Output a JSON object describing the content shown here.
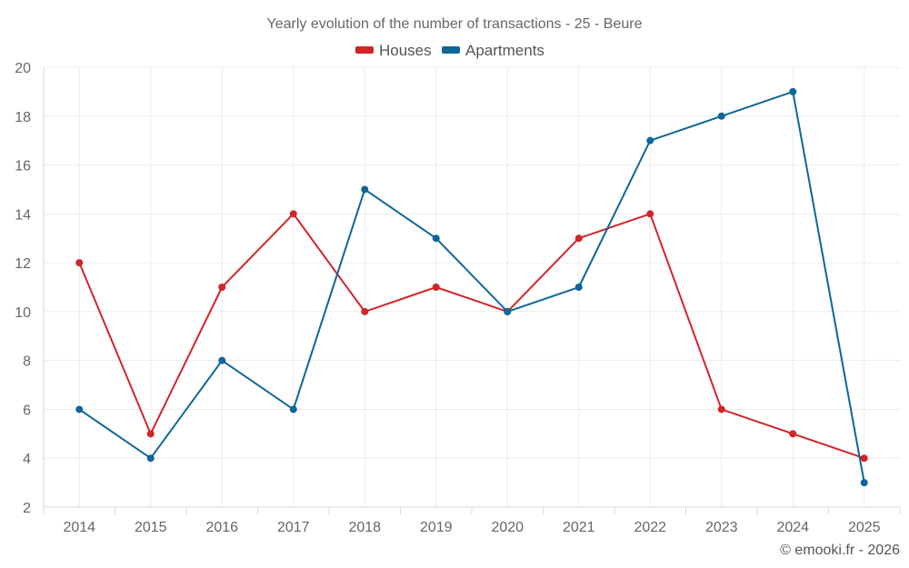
{
  "chart_data": {
    "type": "line",
    "title": "Yearly evolution of the number of transactions - 25 - Beure",
    "categories": [
      "2014",
      "2015",
      "2016",
      "2017",
      "2018",
      "2019",
      "2020",
      "2021",
      "2022",
      "2023",
      "2024",
      "2025"
    ],
    "series": [
      {
        "name": "Houses",
        "color": "#d0262a",
        "values": [
          12,
          5,
          11,
          14,
          10,
          11,
          10,
          13,
          14,
          6,
          5,
          4
        ]
      },
      {
        "name": "Apartments",
        "color": "#0e6699",
        "values": [
          6,
          4,
          8,
          6,
          15,
          13,
          10,
          11,
          17,
          18,
          19,
          3
        ]
      }
    ],
    "ylim": [
      2,
      20
    ],
    "yticks": [
      "2",
      "4",
      "6",
      "8",
      "10",
      "12",
      "14",
      "16",
      "18",
      "20"
    ],
    "xlabel": "",
    "ylabel": "",
    "grid": true,
    "legend_position": "top-center"
  },
  "credit": "© emooki.fr - 2026"
}
